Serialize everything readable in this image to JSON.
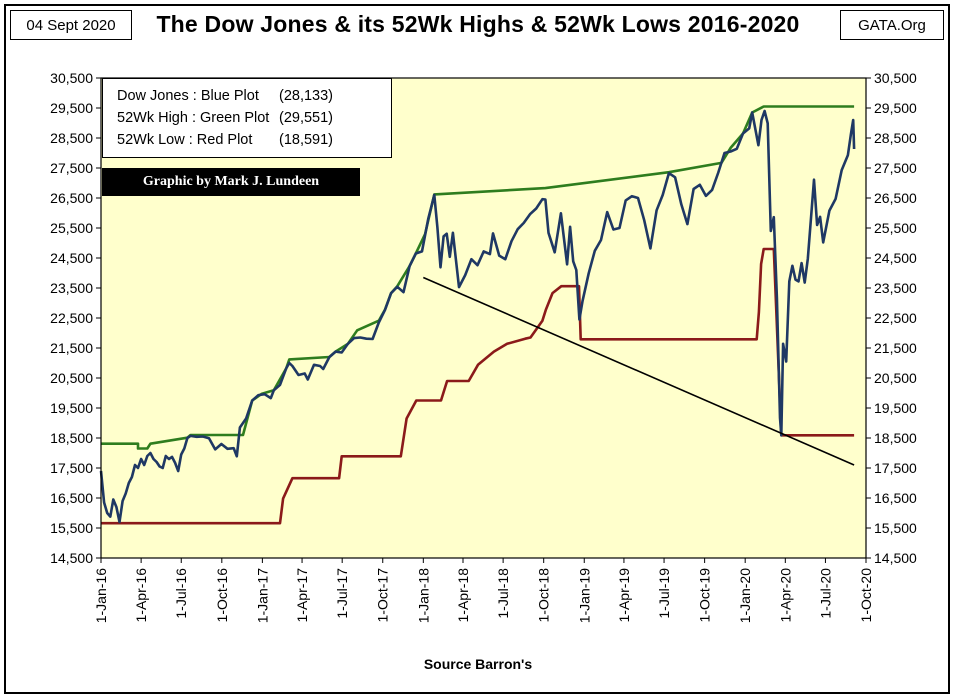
{
  "header": {
    "date": "04 Sept 2020",
    "site": "GATA.Org"
  },
  "chart_data": {
    "type": "line",
    "title": "The Dow Jones & its 52Wk Highs & 52Wk Lows 2016-2020",
    "xlabel": "Source Barron's",
    "ylabel": "",
    "ylim": [
      14500,
      30500
    ],
    "yticks": [
      "30,500",
      "29,500",
      "28,500",
      "27,500",
      "26,500",
      "25,500",
      "24,500",
      "23,500",
      "22,500",
      "21,500",
      "20,500",
      "19,500",
      "18,500",
      "17,500",
      "16,500",
      "15,500",
      "14,500"
    ],
    "xticks": [
      "1-Jan-16",
      "1-Apr-16",
      "1-Jul-16",
      "1-Oct-16",
      "1-Jan-17",
      "1-Apr-17",
      "1-Jul-17",
      "1-Oct-17",
      "1-Jan-18",
      "1-Apr-18",
      "1-Jul-18",
      "1-Oct-18",
      "1-Jan-19",
      "1-Apr-19",
      "1-Jul-19",
      "1-Oct-19",
      "1-Jan-20",
      "1-Apr-20",
      "1-Jul-20",
      "1-Oct-20"
    ],
    "grid": false,
    "legend_note": "Graphic by Mark J. Lundeen",
    "legend": [
      {
        "label": "Dow Jones : Blue Plot",
        "value": "(28,133)"
      },
      {
        "label": "52Wk High : Green Plot",
        "value": "(29,551)"
      },
      {
        "label": "52Wk Low  : Red Plot",
        "value": "(18,591)"
      }
    ],
    "colors": {
      "background": "#ffffcc",
      "dow": "#1f3864",
      "high": "#2e7d1e",
      "low": "#8b1a1a",
      "trend": "#000000"
    },
    "series": [
      {
        "name": "Dow Jones",
        "points": [
          [
            "2016-01-01",
            17400
          ],
          [
            "2016-01-08",
            16350
          ],
          [
            "2016-01-15",
            16000
          ],
          [
            "2016-01-22",
            15880
          ],
          [
            "2016-01-29",
            16450
          ],
          [
            "2016-02-05",
            16200
          ],
          [
            "2016-02-12",
            15700
          ],
          [
            "2016-02-19",
            16400
          ],
          [
            "2016-02-26",
            16650
          ],
          [
            "2016-03-04",
            17000
          ],
          [
            "2016-03-11",
            17200
          ],
          [
            "2016-03-18",
            17600
          ],
          [
            "2016-03-25",
            17500
          ],
          [
            "2016-04-01",
            17800
          ],
          [
            "2016-04-08",
            17600
          ],
          [
            "2016-04-15",
            17900
          ],
          [
            "2016-04-22",
            18000
          ],
          [
            "2016-04-29",
            17800
          ],
          [
            "2016-05-06",
            17700
          ],
          [
            "2016-05-13",
            17550
          ],
          [
            "2016-05-20",
            17500
          ],
          [
            "2016-05-27",
            17900
          ],
          [
            "2016-06-03",
            17800
          ],
          [
            "2016-06-10",
            17870
          ],
          [
            "2016-06-17",
            17670
          ],
          [
            "2016-06-24",
            17400
          ],
          [
            "2016-07-01",
            17950
          ],
          [
            "2016-07-08",
            18150
          ],
          [
            "2016-07-15",
            18500
          ],
          [
            "2016-07-22",
            18570
          ],
          [
            "2016-08-05",
            18540
          ],
          [
            "2016-08-19",
            18550
          ],
          [
            "2016-09-02",
            18490
          ],
          [
            "2016-09-16",
            18120
          ],
          [
            "2016-09-30",
            18300
          ],
          [
            "2016-10-14",
            18140
          ],
          [
            "2016-10-28",
            18160
          ],
          [
            "2016-11-04",
            17890
          ],
          [
            "2016-11-11",
            18850
          ],
          [
            "2016-11-25",
            19150
          ],
          [
            "2016-12-09",
            19750
          ],
          [
            "2016-12-23",
            19930
          ],
          [
            "2017-01-06",
            19960
          ],
          [
            "2017-01-20",
            19830
          ],
          [
            "2017-01-27",
            20090
          ],
          [
            "2017-02-10",
            20270
          ],
          [
            "2017-02-24",
            20820
          ],
          [
            "2017-03-03",
            21000
          ],
          [
            "2017-03-10",
            20900
          ],
          [
            "2017-03-24",
            20600
          ],
          [
            "2017-04-07",
            20650
          ],
          [
            "2017-04-14",
            20450
          ],
          [
            "2017-04-28",
            20940
          ],
          [
            "2017-05-12",
            20900
          ],
          [
            "2017-05-19",
            20800
          ],
          [
            "2017-06-02",
            21200
          ],
          [
            "2017-06-16",
            21380
          ],
          [
            "2017-06-30",
            21350
          ],
          [
            "2017-07-14",
            21640
          ],
          [
            "2017-07-28",
            21830
          ],
          [
            "2017-08-11",
            21850
          ],
          [
            "2017-08-25",
            21810
          ],
          [
            "2017-09-08",
            21800
          ],
          [
            "2017-09-22",
            22350
          ],
          [
            "2017-10-06",
            22770
          ],
          [
            "2017-10-20",
            23330
          ],
          [
            "2017-11-03",
            23540
          ],
          [
            "2017-11-17",
            23360
          ],
          [
            "2017-12-01",
            24230
          ],
          [
            "2017-12-15",
            24650
          ],
          [
            "2017-12-29",
            24720
          ],
          [
            "2018-01-12",
            25800
          ],
          [
            "2018-01-26",
            26600
          ],
          [
            "2018-02-02",
            25520
          ],
          [
            "2018-02-09",
            24190
          ],
          [
            "2018-02-16",
            25220
          ],
          [
            "2018-02-23",
            25310
          ],
          [
            "2018-03-02",
            24540
          ],
          [
            "2018-03-09",
            25340
          ],
          [
            "2018-03-23",
            23530
          ],
          [
            "2018-04-06",
            23930
          ],
          [
            "2018-04-20",
            24460
          ],
          [
            "2018-05-04",
            24260
          ],
          [
            "2018-05-18",
            24720
          ],
          [
            "2018-06-01",
            24630
          ],
          [
            "2018-06-08",
            25320
          ],
          [
            "2018-06-22",
            24580
          ],
          [
            "2018-07-06",
            24460
          ],
          [
            "2018-07-20",
            25060
          ],
          [
            "2018-08-03",
            25460
          ],
          [
            "2018-08-17",
            25670
          ],
          [
            "2018-08-31",
            25960
          ],
          [
            "2018-09-14",
            26150
          ],
          [
            "2018-09-28",
            26460
          ],
          [
            "2018-10-05",
            26450
          ],
          [
            "2018-10-12",
            25340
          ],
          [
            "2018-10-26",
            24690
          ],
          [
            "2018-11-09",
            25990
          ],
          [
            "2018-11-23",
            24290
          ],
          [
            "2018-11-30",
            25540
          ],
          [
            "2018-12-07",
            24390
          ],
          [
            "2018-12-14",
            24100
          ],
          [
            "2018-12-21",
            22450
          ],
          [
            "2018-12-28",
            23060
          ],
          [
            "2019-01-11",
            23990
          ],
          [
            "2019-01-25",
            24740
          ],
          [
            "2019-02-08",
            25100
          ],
          [
            "2019-02-22",
            26030
          ],
          [
            "2019-03-08",
            25450
          ],
          [
            "2019-03-22",
            25500
          ],
          [
            "2019-04-05",
            26420
          ],
          [
            "2019-04-19",
            26560
          ],
          [
            "2019-05-03",
            26500
          ],
          [
            "2019-05-17",
            25760
          ],
          [
            "2019-05-31",
            24820
          ],
          [
            "2019-06-14",
            26090
          ],
          [
            "2019-06-28",
            26600
          ],
          [
            "2019-07-12",
            27330
          ],
          [
            "2019-07-26",
            27190
          ],
          [
            "2019-08-09",
            26290
          ],
          [
            "2019-08-23",
            25630
          ],
          [
            "2019-09-06",
            26800
          ],
          [
            "2019-09-20",
            26940
          ],
          [
            "2019-10-04",
            26570
          ],
          [
            "2019-10-18",
            26770
          ],
          [
            "2019-11-01",
            27350
          ],
          [
            "2019-11-15",
            28000
          ],
          [
            "2019-11-29",
            28050
          ],
          [
            "2019-12-13",
            28140
          ],
          [
            "2019-12-27",
            28650
          ],
          [
            "2020-01-10",
            28820
          ],
          [
            "2020-01-17",
            29350
          ],
          [
            "2020-01-31",
            28260
          ],
          [
            "2020-02-07",
            29100
          ],
          [
            "2020-02-14",
            29400
          ],
          [
            "2020-02-21",
            28990
          ],
          [
            "2020-02-28",
            25400
          ],
          [
            "2020-03-06",
            25860
          ],
          [
            "2020-03-13",
            23180
          ],
          [
            "2020-03-20",
            19170
          ],
          [
            "2020-03-23",
            18590
          ],
          [
            "2020-03-27",
            21640
          ],
          [
            "2020-04-03",
            21050
          ],
          [
            "2020-04-10",
            23720
          ],
          [
            "2020-04-17",
            24240
          ],
          [
            "2020-04-24",
            23780
          ],
          [
            "2020-05-01",
            23720
          ],
          [
            "2020-05-08",
            24330
          ],
          [
            "2020-05-15",
            23680
          ],
          [
            "2020-05-22",
            24470
          ],
          [
            "2020-06-05",
            27110
          ],
          [
            "2020-06-12",
            25600
          ],
          [
            "2020-06-19",
            25870
          ],
          [
            "2020-06-26",
            25020
          ],
          [
            "2020-07-10",
            26080
          ],
          [
            "2020-07-24",
            26470
          ],
          [
            "2020-08-07",
            27430
          ],
          [
            "2020-08-21",
            27930
          ],
          [
            "2020-08-28",
            28650
          ],
          [
            "2020-09-02",
            29100
          ],
          [
            "2020-09-04",
            28133
          ]
        ]
      },
      {
        "name": "52Wk High",
        "points": [
          [
            "2016-01-01",
            18310
          ],
          [
            "2016-03-25",
            18310
          ],
          [
            "2016-03-25",
            18150
          ],
          [
            "2016-04-15",
            18150
          ],
          [
            "2016-04-22",
            18310
          ],
          [
            "2016-07-15",
            18510
          ],
          [
            "2016-07-22",
            18600
          ],
          [
            "2016-11-18",
            18600
          ],
          [
            "2016-12-09",
            19750
          ],
          [
            "2016-12-30",
            19970
          ],
          [
            "2017-01-27",
            20090
          ],
          [
            "2017-02-24",
            20820
          ],
          [
            "2017-03-03",
            21120
          ],
          [
            "2017-06-02",
            21200
          ],
          [
            "2017-06-16",
            21380
          ],
          [
            "2017-07-14",
            21640
          ],
          [
            "2017-08-04",
            22090
          ],
          [
            "2017-09-22",
            22410
          ],
          [
            "2017-10-06",
            22780
          ],
          [
            "2017-10-20",
            23330
          ],
          [
            "2017-11-03",
            23560
          ],
          [
            "2017-12-01",
            24230
          ],
          [
            "2017-12-15",
            24650
          ],
          [
            "2018-01-05",
            25300
          ],
          [
            "2018-01-26",
            26620
          ],
          [
            "2018-10-05",
            26830
          ],
          [
            "2019-07-12",
            27360
          ],
          [
            "2019-11-08",
            27670
          ],
          [
            "2019-11-29",
            28170
          ],
          [
            "2019-12-27",
            28650
          ],
          [
            "2020-01-17",
            29350
          ],
          [
            "2020-02-12",
            29551
          ],
          [
            "2020-09-04",
            29551
          ]
        ]
      },
      {
        "name": "52Wk Low",
        "points": [
          [
            "2016-01-01",
            15660
          ],
          [
            "2017-02-10",
            15660
          ],
          [
            "2017-02-17",
            16480
          ],
          [
            "2017-03-10",
            17160
          ],
          [
            "2017-06-24",
            17160
          ],
          [
            "2017-06-30",
            17890
          ],
          [
            "2017-11-11",
            17890
          ],
          [
            "2017-11-24",
            19150
          ],
          [
            "2017-12-16",
            19750
          ],
          [
            "2018-02-10",
            19750
          ],
          [
            "2018-02-24",
            20400
          ],
          [
            "2018-04-14",
            20400
          ],
          [
            "2018-05-05",
            20940
          ],
          [
            "2018-06-10",
            21380
          ],
          [
            "2018-07-10",
            21640
          ],
          [
            "2018-08-20",
            21810
          ],
          [
            "2018-09-01",
            21850
          ],
          [
            "2018-09-28",
            22410
          ],
          [
            "2018-10-06",
            22780
          ],
          [
            "2018-10-21",
            23330
          ],
          [
            "2018-11-10",
            23560
          ],
          [
            "2018-12-20",
            23560
          ],
          [
            "2018-12-24",
            21790
          ],
          [
            "2020-01-27",
            21790
          ],
          [
            "2020-02-01",
            22700
          ],
          [
            "2020-02-06",
            24300
          ],
          [
            "2020-02-12",
            24800
          ],
          [
            "2020-03-06",
            24800
          ],
          [
            "2020-03-23",
            18591
          ],
          [
            "2020-09-04",
            18591
          ]
        ]
      },
      {
        "name": "Trend line",
        "points": [
          [
            "2018-01-01",
            23850
          ],
          [
            "2020-09-04",
            17600
          ]
        ]
      }
    ]
  }
}
